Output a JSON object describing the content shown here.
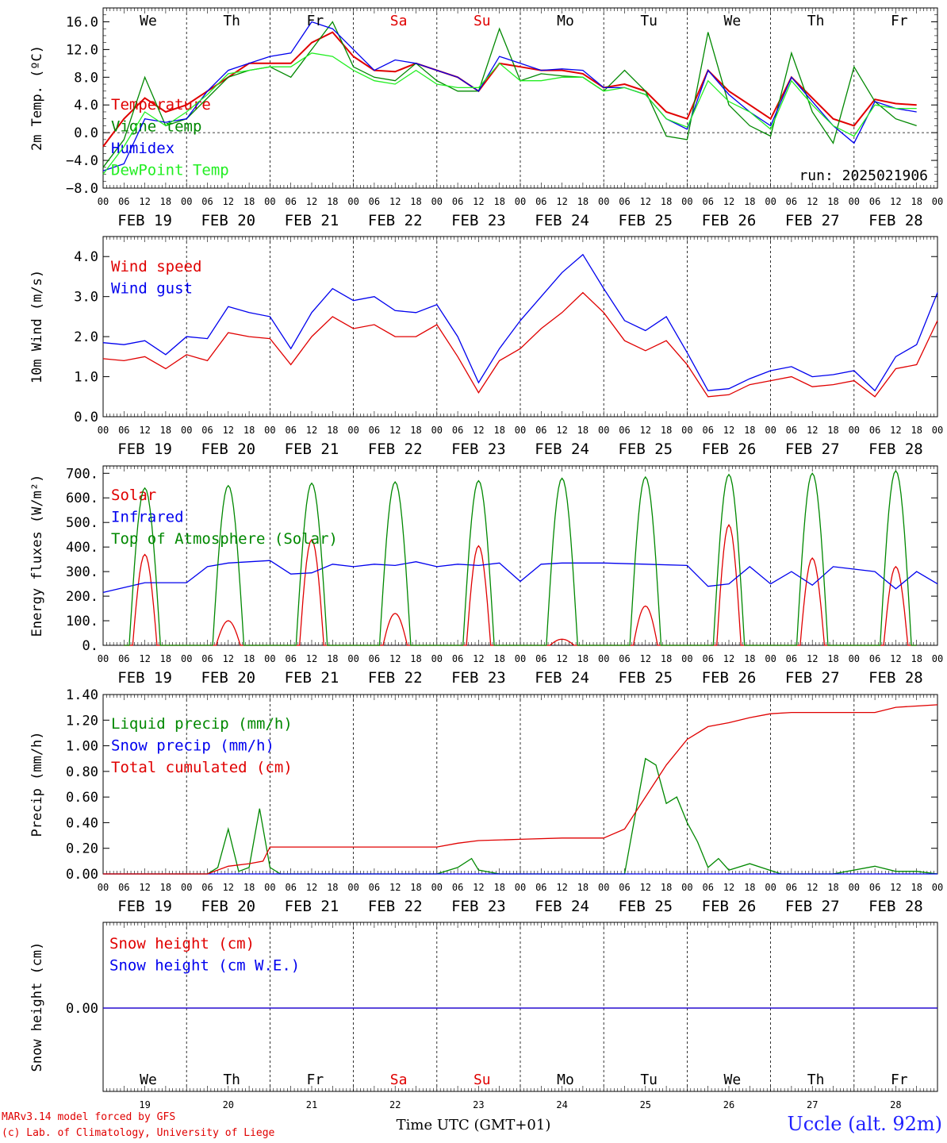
{
  "chart_data": [
    {
      "type": "line",
      "ylabel": "2m Temp. (ºC)",
      "ylim": [
        -8,
        18
      ],
      "yticks": [
        -8.0,
        -4.0,
        0.0,
        4.0,
        8.0,
        12.0,
        16.0
      ],
      "ytick_labels": [
        "−8.0",
        "−4.0",
        "0.0",
        "4.0",
        "8.0",
        "12.0",
        "16.0"
      ],
      "annotation": "run: 2025021906",
      "x_time": "hours since FEB 19 00 UTC",
      "series": [
        {
          "name": "Temperature",
          "color": "#e00000",
          "x": [
            0,
            6,
            12,
            18,
            24,
            30,
            36,
            42,
            48,
            54,
            60,
            66,
            72,
            78,
            84,
            90,
            96,
            102,
            108,
            114,
            120,
            126,
            132,
            138,
            144,
            150,
            156,
            162,
            168,
            174,
            180,
            186,
            192,
            198,
            204,
            210,
            216,
            222,
            228,
            234
          ],
          "y": [
            -2,
            2,
            5,
            3,
            4,
            6,
            8,
            10,
            10,
            10,
            13,
            14.5,
            11,
            9,
            8.8,
            10,
            9,
            8,
            6,
            10,
            9.5,
            9,
            9,
            8.5,
            6.5,
            7,
            6,
            3,
            2,
            9,
            6,
            4,
            2,
            8,
            5,
            2,
            1,
            4.8,
            4.2,
            4
          ]
        },
        {
          "name": "Vigne temp",
          "color": "#008800",
          "x": [
            0,
            6,
            12,
            18,
            24,
            30,
            36,
            42,
            48,
            54,
            60,
            66,
            72,
            78,
            84,
            90,
            96,
            102,
            108,
            114,
            120,
            126,
            132,
            138,
            144,
            150,
            156,
            162,
            168,
            174,
            180,
            186,
            192,
            198,
            204,
            210,
            216,
            222,
            228,
            234
          ],
          "y": [
            -5,
            -1,
            8,
            1,
            2,
            5,
            8,
            9,
            9.5,
            8,
            12,
            16,
            9.5,
            8,
            7.5,
            10,
            7.5,
            6,
            6,
            15,
            7.5,
            8.5,
            8.2,
            8,
            6,
            9,
            6,
            -0.5,
            -1,
            14.5,
            4,
            1,
            -0.5,
            11.5,
            3,
            -1.5,
            9.5,
            4.5,
            2,
            1
          ]
        },
        {
          "name": "Humidex",
          "color": "#0000ee",
          "x": [
            0,
            6,
            12,
            18,
            24,
            30,
            36,
            42,
            48,
            54,
            60,
            66,
            72,
            78,
            84,
            90,
            96,
            102,
            108,
            114,
            120,
            126,
            132,
            138,
            144,
            150,
            156,
            162,
            168,
            174,
            180,
            186,
            192,
            198,
            204,
            210,
            216,
            222,
            228,
            234
          ],
          "y": [
            -5.5,
            -4.5,
            2,
            1.5,
            2,
            6,
            9,
            10,
            11,
            11.5,
            16,
            15,
            12,
            9,
            10.5,
            10,
            9,
            8,
            6,
            11,
            10,
            9,
            9.2,
            9,
            6.5,
            6.5,
            5.5,
            2,
            0.5,
            9,
            5.5,
            3,
            1,
            8,
            4.5,
            1,
            -1.5,
            4.5,
            3.5,
            3
          ]
        },
        {
          "name": "DewPoint Temp",
          "color": "#22ee22",
          "x": [
            0,
            6,
            12,
            18,
            24,
            30,
            36,
            42,
            48,
            54,
            60,
            66,
            72,
            78,
            84,
            90,
            96,
            102,
            108,
            114,
            120,
            126,
            132,
            138,
            144,
            150,
            156,
            162,
            168,
            174,
            180,
            186,
            192,
            198,
            204,
            210,
            216,
            222,
            228,
            234
          ],
          "y": [
            -6,
            -2,
            3,
            1,
            3,
            5.5,
            8.5,
            9,
            9.5,
            9.5,
            11.5,
            11,
            9,
            7.5,
            7,
            9,
            7,
            6.5,
            6.5,
            10,
            7.5,
            7.5,
            8,
            8,
            6,
            6.5,
            5.5,
            2,
            0.8,
            7.5,
            4.5,
            3,
            0.5,
            7.5,
            4,
            1,
            -0.5,
            4,
            3.5,
            3.5
          ]
        }
      ]
    },
    {
      "type": "line",
      "ylabel": "10m Wind (m/s)",
      "ylim": [
        0,
        4.5
      ],
      "yticks": [
        0.0,
        1.0,
        2.0,
        3.0,
        4.0
      ],
      "ytick_labels": [
        "0.0",
        "1.0",
        "2.0",
        "3.0",
        "4.0"
      ],
      "series": [
        {
          "name": "Wind speed",
          "color": "#e00000",
          "x": [
            0,
            6,
            12,
            18,
            24,
            30,
            36,
            42,
            48,
            54,
            60,
            66,
            72,
            78,
            84,
            90,
            96,
            102,
            108,
            114,
            120,
            126,
            132,
            138,
            144,
            150,
            156,
            162,
            168,
            174,
            180,
            186,
            192,
            198,
            204,
            210,
            216,
            222,
            228,
            234,
            240
          ],
          "y": [
            1.45,
            1.4,
            1.5,
            1.2,
            1.55,
            1.4,
            2.1,
            2.0,
            1.95,
            1.3,
            2.0,
            2.5,
            2.2,
            2.3,
            2.0,
            2.0,
            2.3,
            1.5,
            0.6,
            1.4,
            1.7,
            2.2,
            2.6,
            3.1,
            2.6,
            1.9,
            1.65,
            1.9,
            1.3,
            0.5,
            0.55,
            0.8,
            0.9,
            1.0,
            0.75,
            0.8,
            0.9,
            0.5,
            1.2,
            1.3,
            2.4
          ]
        },
        {
          "name": "Wind gust",
          "color": "#0000ee",
          "x": [
            0,
            6,
            12,
            18,
            24,
            30,
            36,
            42,
            48,
            54,
            60,
            66,
            72,
            78,
            84,
            90,
            96,
            102,
            108,
            114,
            120,
            126,
            132,
            138,
            144,
            150,
            156,
            162,
            168,
            174,
            180,
            186,
            192,
            198,
            204,
            210,
            216,
            222,
            228,
            234,
            240
          ],
          "y": [
            1.85,
            1.8,
            1.9,
            1.55,
            2.0,
            1.95,
            2.75,
            2.6,
            2.5,
            1.7,
            2.6,
            3.2,
            2.9,
            3.0,
            2.65,
            2.6,
            2.8,
            2.0,
            0.85,
            1.7,
            2.4,
            3.0,
            3.6,
            4.05,
            3.2,
            2.4,
            2.15,
            2.5,
            1.6,
            0.65,
            0.7,
            0.95,
            1.15,
            1.25,
            1.0,
            1.05,
            1.15,
            0.65,
            1.5,
            1.8,
            3.1
          ]
        }
      ]
    },
    {
      "type": "line",
      "ylabel": "Energy fluxes (W/m²)",
      "ylim": [
        0,
        730
      ],
      "yticks": [
        0,
        100,
        200,
        300,
        400,
        500,
        600,
        700
      ],
      "ytick_labels": [
        "0.",
        "100.",
        "200.",
        "300.",
        "400.",
        "500.",
        "600.",
        "700."
      ],
      "series": [
        {
          "name": "Solar",
          "color": "#e00000",
          "note": "daily peak at 12 UTC, values per day",
          "daily_peaks": [
            370,
            100,
            430,
            130,
            405,
            25,
            160,
            490,
            355,
            320
          ]
        },
        {
          "name": "Infrared",
          "color": "#0000ee",
          "x": [
            0,
            12,
            24,
            30,
            36,
            48,
            54,
            60,
            66,
            72,
            78,
            84,
            90,
            96,
            102,
            108,
            114,
            120,
            126,
            132,
            144,
            156,
            168,
            174,
            180,
            186,
            192,
            198,
            204,
            210,
            216,
            222,
            228,
            234,
            240
          ],
          "y": [
            215,
            255,
            255,
            320,
            335,
            345,
            290,
            295,
            330,
            320,
            330,
            325,
            340,
            320,
            330,
            325,
            335,
            260,
            330,
            335,
            335,
            330,
            325,
            240,
            250,
            320,
            250,
            300,
            245,
            320,
            310,
            300,
            230,
            300,
            250
          ]
        },
        {
          "name": "Top of Atmosphere (Solar)",
          "color": "#008800",
          "note": "daily peak at 12 UTC, values per day",
          "daily_peaks": [
            640,
            650,
            660,
            665,
            670,
            680,
            685,
            695,
            700,
            710
          ]
        }
      ]
    },
    {
      "type": "line",
      "ylabel": "Precip (mm/h)",
      "ylim": [
        0,
        1.4
      ],
      "yticks": [
        0.0,
        0.2,
        0.4,
        0.6,
        0.8,
        1.0,
        1.2,
        1.4
      ],
      "ytick_labels": [
        "0.00",
        "0.20",
        "0.40",
        "0.60",
        "0.80",
        "1.00",
        "1.20",
        "1.40"
      ],
      "series": [
        {
          "name": "Liquid precip (mm/h)",
          "color": "#008800",
          "x": [
            0,
            30,
            33,
            36,
            39,
            42,
            45,
            48,
            51,
            54,
            96,
            102,
            106,
            108,
            114,
            120,
            150,
            156,
            159,
            162,
            165,
            168,
            171,
            174,
            177,
            180,
            186,
            195,
            210,
            222,
            228,
            234,
            240
          ],
          "y": [
            0,
            0,
            0.05,
            0.35,
            0.02,
            0.05,
            0.51,
            0.05,
            0,
            0,
            0,
            0.05,
            0.12,
            0.03,
            0,
            0,
            0,
            0.9,
            0.85,
            0.55,
            0.6,
            0.4,
            0.25,
            0.05,
            0.12,
            0.03,
            0.08,
            0,
            0,
            0.06,
            0.02,
            0.02,
            0
          ]
        },
        {
          "name": "Snow precip (mm/h)",
          "color": "#0000ee",
          "x": [
            0,
            240
          ],
          "y": [
            0,
            0
          ]
        },
        {
          "name": "Total cumulated (cm)",
          "color": "#e00000",
          "x": [
            0,
            30,
            36,
            42,
            46,
            48,
            60,
            72,
            84,
            96,
            102,
            108,
            120,
            132,
            144,
            150,
            156,
            162,
            168,
            174,
            180,
            186,
            192,
            198,
            204,
            216,
            222,
            228,
            240
          ],
          "y": [
            0,
            0,
            0.06,
            0.08,
            0.1,
            0.21,
            0.21,
            0.21,
            0.21,
            0.21,
            0.24,
            0.26,
            0.27,
            0.28,
            0.28,
            0.35,
            0.6,
            0.85,
            1.05,
            1.15,
            1.18,
            1.22,
            1.25,
            1.26,
            1.26,
            1.26,
            1.26,
            1.3,
            1.32
          ]
        }
      ]
    },
    {
      "type": "line",
      "ylabel": "Snow height (cm)",
      "yticks": [
        0.0
      ],
      "ytick_labels": [
        "0.00"
      ],
      "series": [
        {
          "name": "Snow height (cm)",
          "color": "#e00000",
          "x": [
            0,
            240
          ],
          "y": [
            0,
            0
          ]
        },
        {
          "name": "Snow height (cm W.E.)",
          "color": "#0000ee",
          "x": [
            0,
            240
          ],
          "y": [
            0,
            0
          ]
        }
      ]
    }
  ],
  "days": [
    {
      "dow": "We",
      "date": "FEB 19",
      "num": "19",
      "color": "#000000"
    },
    {
      "dow": "Th",
      "date": "FEB 20",
      "num": "20",
      "color": "#000000"
    },
    {
      "dow": "Fr",
      "date": "FEB 21",
      "num": "21",
      "color": "#000000"
    },
    {
      "dow": "Sa",
      "date": "FEB 22",
      "num": "22",
      "color": "#e00000"
    },
    {
      "dow": "Su",
      "date": "FEB 23",
      "num": "23",
      "color": "#e00000"
    },
    {
      "dow": "Mo",
      "date": "FEB 24",
      "num": "24",
      "color": "#000000"
    },
    {
      "dow": "Tu",
      "date": "FEB 25",
      "num": "25",
      "color": "#000000"
    },
    {
      "dow": "We",
      "date": "FEB 26",
      "num": "26",
      "color": "#000000"
    },
    {
      "dow": "Th",
      "date": "FEB 27",
      "num": "27",
      "color": "#000000"
    },
    {
      "dow": "Fr",
      "date": "FEB 28",
      "num": "28",
      "color": "#000000"
    }
  ],
  "hour_labels": [
    "00",
    "06",
    "12",
    "18"
  ],
  "final_hour_label": "00",
  "footer": {
    "model_line": "MARv3.14 model forced by GFS",
    "credit_line": "(c) Lab. of Climatology, University of Liege",
    "xlabel": "Time UTC (GMT+01)",
    "station": "Uccle (alt. 92m)"
  }
}
